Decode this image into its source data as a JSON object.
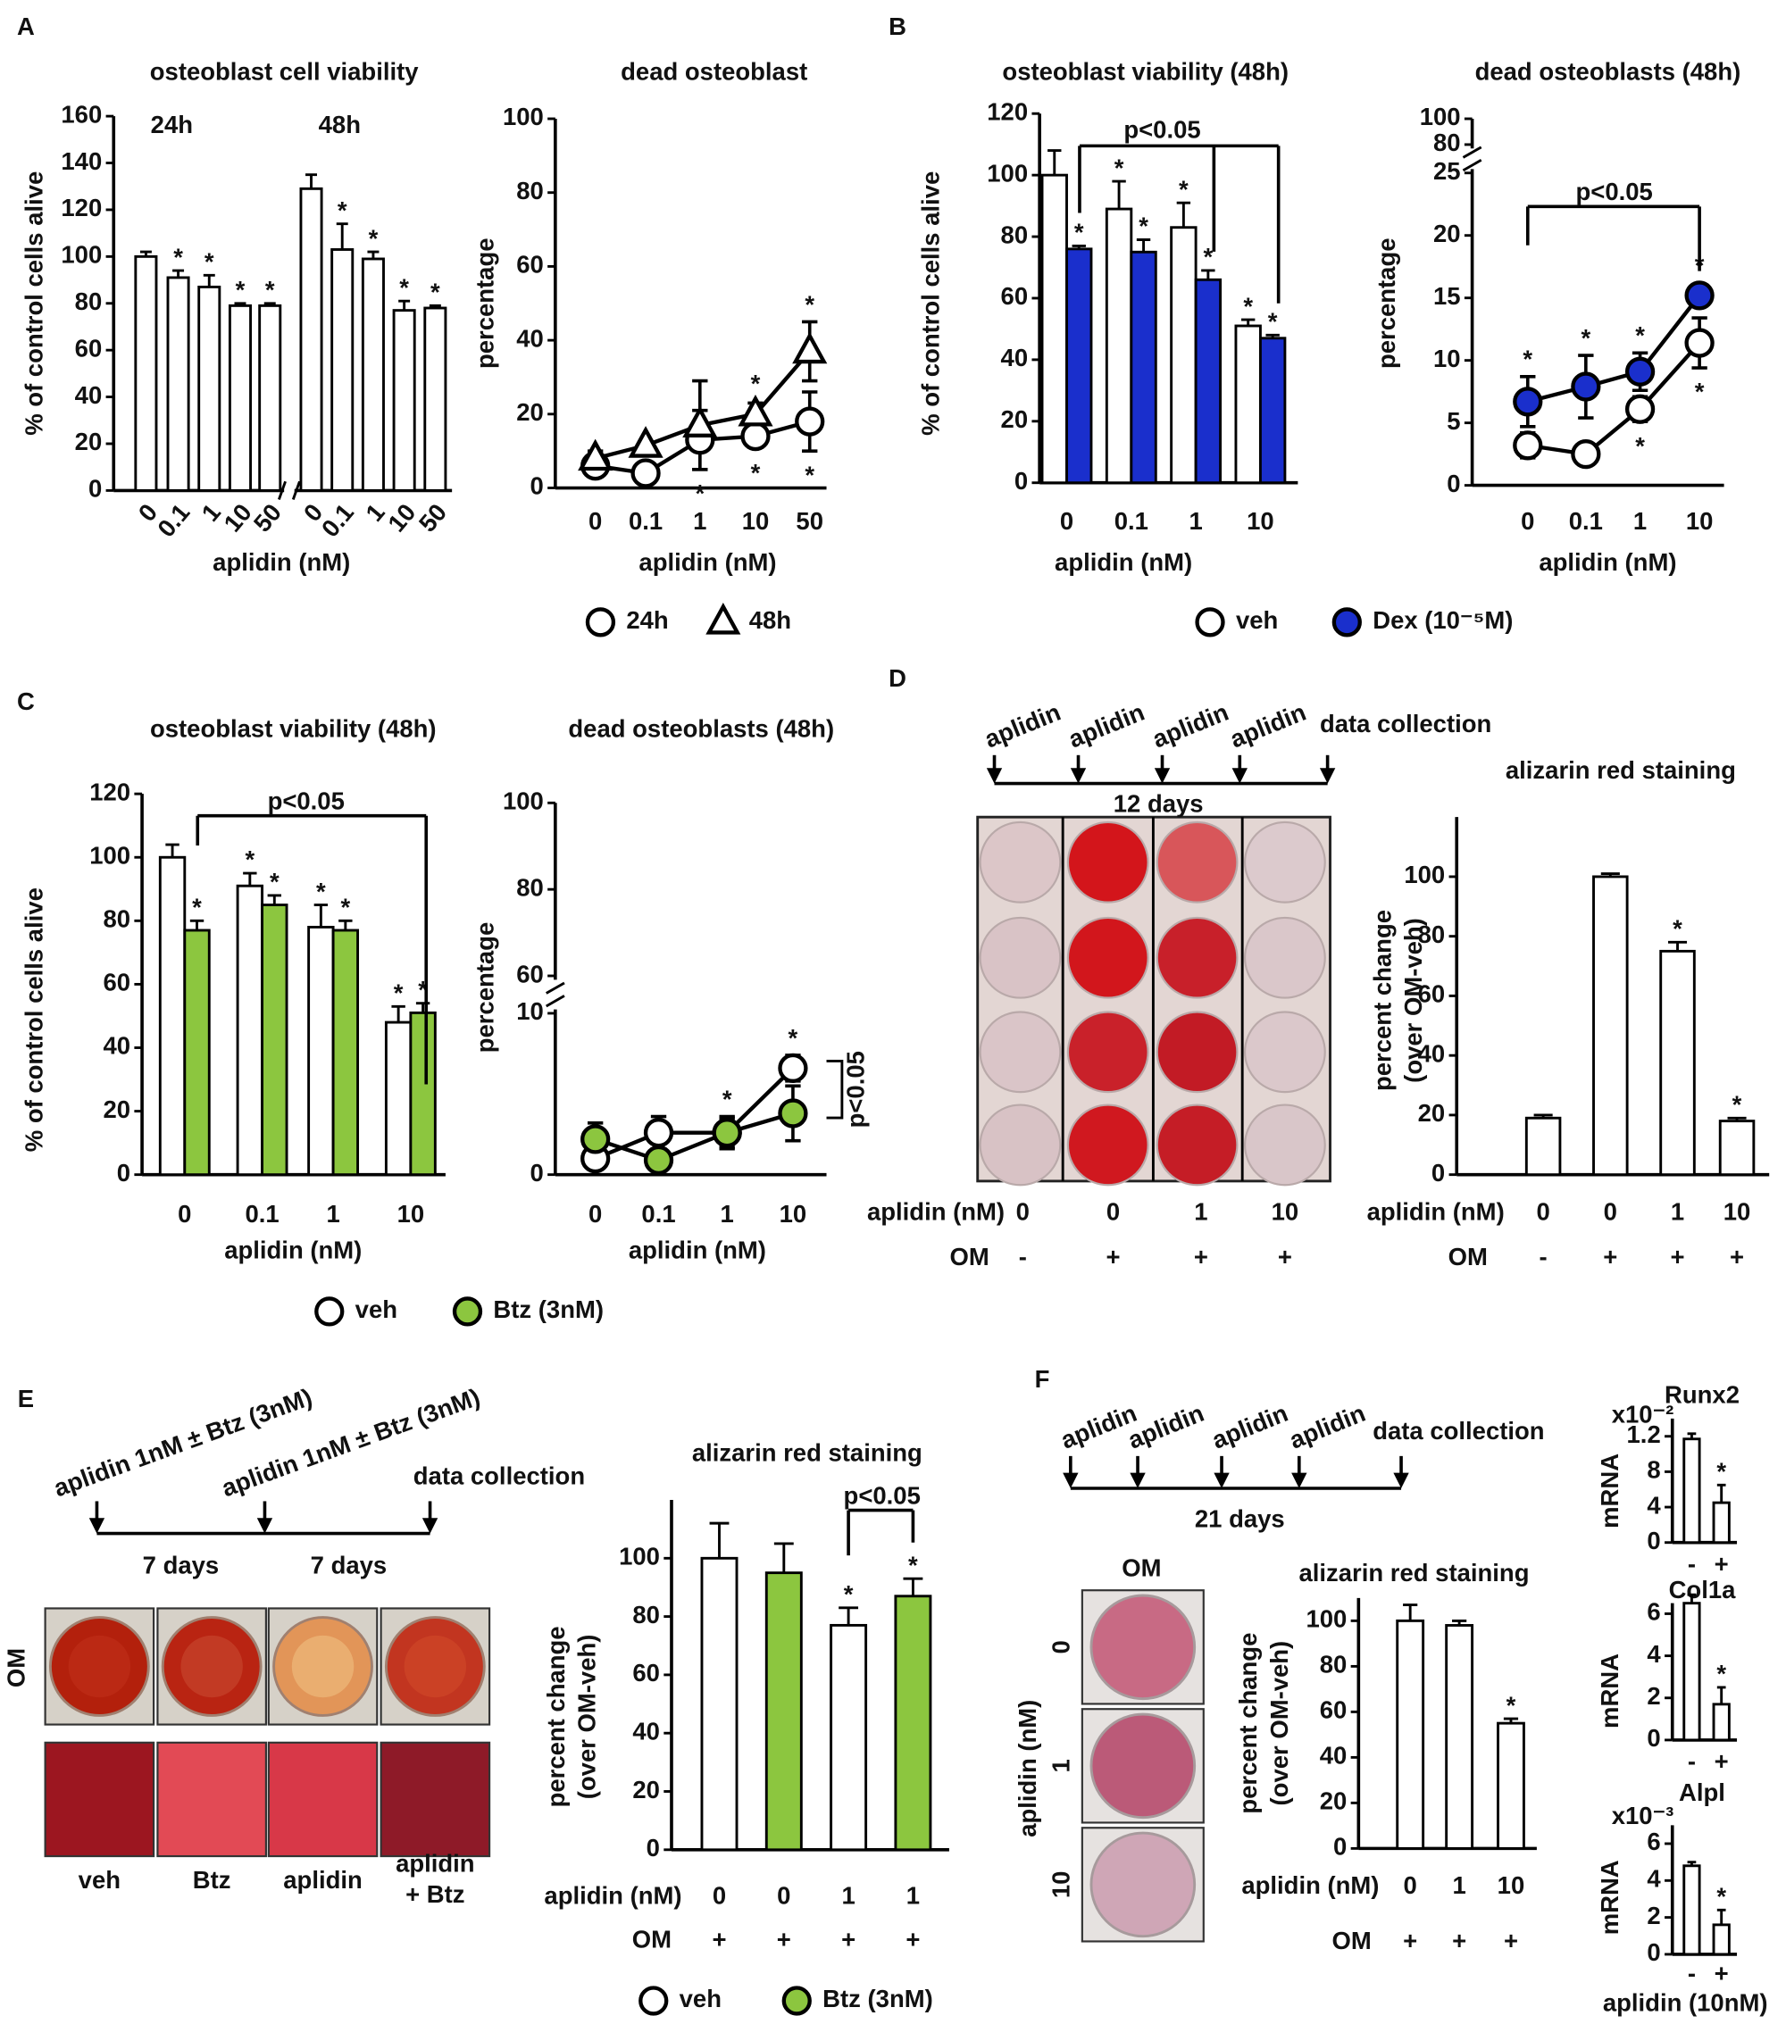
{
  "panel_labels": [
    "A",
    "B",
    "C",
    "D",
    "E",
    "F"
  ],
  "chart_data": [
    {
      "type": "bar",
      "title": "osteoblast cell viability",
      "ylabel": "% of control cells alive",
      "xlabel": "aplidin (nM)",
      "groups": [
        "24h",
        "48h"
      ],
      "categories": [
        "0",
        "0.1",
        "1",
        "10",
        "50",
        "0",
        "0.1",
        "1",
        "10",
        "50"
      ],
      "values": [
        100,
        91,
        87,
        79,
        79,
        129,
        103,
        99,
        77,
        78
      ],
      "errors": [
        2,
        3,
        5,
        1,
        1,
        6,
        11,
        3,
        4,
        1
      ],
      "stars": [
        null,
        "*",
        "*",
        "*",
        "*",
        null,
        "*",
        "*",
        "*",
        "*"
      ],
      "color": "#ffffff",
      "ylim": [
        0,
        160
      ],
      "yticks": [
        0,
        20,
        40,
        60,
        80,
        100,
        120,
        140,
        160
      ]
    },
    {
      "type": "line",
      "title": "dead osteoblast",
      "ylabel": "percentage",
      "xlabel": "aplidin (nM)",
      "categories": [
        "0",
        "0.1",
        "1",
        "10",
        "50"
      ],
      "series": [
        {
          "name": "24h",
          "marker": "circle",
          "color": "#ffffff",
          "values": [
            6,
            4,
            13,
            14,
            18
          ],
          "errors": [
            1,
            1,
            8,
            3,
            8
          ],
          "stars": [
            null,
            null,
            "*",
            "*",
            "*"
          ]
        },
        {
          "name": "48h",
          "marker": "triangle",
          "color": "#ffffff",
          "values": [
            8,
            11.5,
            17,
            20,
            37
          ],
          "errors": [
            2,
            1,
            12,
            3,
            8
          ],
          "stars": [
            null,
            null,
            null,
            "*",
            "*"
          ]
        }
      ],
      "ylim": [
        0,
        100
      ],
      "yticks": [
        0,
        20,
        40,
        60,
        80,
        100
      ],
      "legend": "bottom"
    },
    {
      "type": "bar",
      "title": "osteoblast viability (48h)",
      "ylabel": "% of control cells alive",
      "xlabel": "aplidin (nM)",
      "annotation": "p<0.05",
      "categories": [
        "0",
        "0.1",
        "1",
        "10"
      ],
      "series": [
        {
          "name": "veh",
          "marker": "circle",
          "color": "#ffffff",
          "values": [
            100,
            89,
            83,
            51
          ],
          "errors": [
            8,
            9,
            8,
            2
          ],
          "stars": [
            null,
            "*",
            "*",
            "*"
          ]
        },
        {
          "name": "Dex (10⁻⁵M)",
          "marker": "circle",
          "color": "#1a2fcc",
          "values": [
            76,
            75,
            66,
            47
          ],
          "errors": [
            1,
            4,
            3,
            1
          ],
          "stars": [
            "*",
            "*",
            "*",
            "*"
          ]
        }
      ],
      "ylim": [
        0,
        120
      ],
      "yticks": [
        0,
        20,
        40,
        60,
        80,
        100,
        120
      ],
      "legend": "bottom"
    },
    {
      "type": "line",
      "title": "dead osteoblasts (48h)",
      "ylabel": "percentage",
      "xlabel": "aplidin (nM)",
      "annotation": "p<0.05",
      "categories": [
        "0",
        "0.1",
        "1",
        "10"
      ],
      "series": [
        {
          "marker": "circle",
          "color": "#ffffff",
          "values": [
            3.2,
            2.5,
            6.1,
            11.4
          ],
          "errors": [
            1,
            0.5,
            1,
            2
          ],
          "stars": [
            null,
            null,
            "*",
            "*"
          ]
        },
        {
          "marker": "circle",
          "color": "#1a2fcc",
          "values": [
            6.7,
            7.9,
            9.1,
            15.2
          ],
          "errors": [
            2,
            2.5,
            1.5,
            0.5
          ],
          "stars": [
            "*",
            "*",
            "*",
            "*"
          ]
        }
      ],
      "ylim": [
        0,
        25
      ],
      "yticks": [
        0,
        5,
        10,
        15,
        20,
        25
      ],
      "upper_ylim": [
        80,
        100
      ],
      "upper_yticks": [
        80,
        100
      ]
    },
    {
      "type": "bar",
      "title": "osteoblast viability (48h)",
      "ylabel": "% of control cells alive",
      "xlabel": "aplidin (nM)",
      "annotation": "p<0.05",
      "categories": [
        "0",
        "0.1",
        "1",
        "10"
      ],
      "series": [
        {
          "name": "veh",
          "marker": "circle",
          "color": "#ffffff",
          "values": [
            100,
            91,
            78,
            48
          ],
          "errors": [
            4,
            4,
            7,
            5
          ],
          "stars": [
            null,
            "*",
            "*",
            "*"
          ]
        },
        {
          "name": "Btz (3nM)",
          "marker": "circle",
          "color": "#8cc63f",
          "values": [
            77,
            85,
            77,
            51
          ],
          "errors": [
            3,
            3,
            3,
            3
          ],
          "stars": [
            "*",
            "*",
            "*",
            "*"
          ]
        }
      ],
      "ylim": [
        0,
        120
      ],
      "yticks": [
        0,
        20,
        40,
        60,
        80,
        100,
        120
      ],
      "legend": "bottom"
    },
    {
      "type": "line",
      "title": "dead osteoblasts (48h)",
      "ylabel": "percentage",
      "xlabel": "aplidin (nM)",
      "annotation": "p<0.05",
      "categories": [
        "0",
        "0.1",
        "1",
        "10"
      ],
      "series": [
        {
          "marker": "circle",
          "color": "#ffffff",
          "values": [
            1.0,
            2.6,
            2.6,
            6.6
          ],
          "errors": [
            0.5,
            1,
            1,
            0.8
          ],
          "stars": [
            null,
            null,
            "*",
            "*"
          ]
        },
        {
          "marker": "circle",
          "color": "#8cc63f",
          "values": [
            2.2,
            0.9,
            2.6,
            3.8
          ],
          "errors": [
            1,
            0.3,
            0.9,
            1.7
          ]
        }
      ],
      "ylim": [
        0,
        10
      ],
      "yticks": [
        0,
        10
      ],
      "upper_ylim": [
        60,
        100
      ],
      "upper_yticks": [
        60,
        80,
        100
      ]
    },
    {
      "type": "bar",
      "title": "alizarin red staining",
      "ylabel": [
        "percent change",
        "(over OM-veh)"
      ],
      "xlabel": "aplidin (nM)",
      "categories": [
        "0",
        "0",
        "1",
        "10"
      ],
      "rows": [
        {
          "label": "OM",
          "values": [
            "-",
            "+",
            "+",
            "+"
          ]
        }
      ],
      "values": [
        19,
        100,
        75,
        18
      ],
      "errors": [
        1,
        1,
        3,
        1
      ],
      "stars": [
        null,
        null,
        "*",
        "*"
      ],
      "color": "#ffffff",
      "ylim": [
        0,
        120
      ],
      "yticks": [
        0,
        20,
        40,
        60,
        80,
        100
      ]
    },
    {
      "type": "bar",
      "title": "alizarin red staining",
      "ylabel": [
        "percent change",
        "(over OM-veh)"
      ],
      "xlabel": "aplidin (nM)",
      "annotation": "p<0.05",
      "categories": [
        "0",
        "0",
        "1",
        "1"
      ],
      "rows": [
        {
          "label": "OM",
          "values": [
            "+",
            "+",
            "+",
            "+"
          ]
        }
      ],
      "series": [
        {
          "name": "veh",
          "marker": "circle",
          "color": "#ffffff",
          "values": [
            100,
            null,
            77,
            null
          ],
          "errors": [
            12,
            null,
            6,
            null
          ],
          "stars": [
            null,
            null,
            "*",
            null
          ]
        },
        {
          "name": "Btz (3nM)",
          "marker": "circle",
          "color": "#8cc63f",
          "values": [
            null,
            95,
            null,
            87
          ],
          "errors": [
            null,
            10,
            null,
            6
          ],
          "stars": [
            null,
            null,
            null,
            "*"
          ]
        }
      ],
      "ylim": [
        0,
        120
      ],
      "yticks": [
        0,
        20,
        40,
        60,
        80,
        100
      ],
      "legend": "bottom"
    },
    {
      "type": "bar",
      "title": "alizarin red staining",
      "ylabel": [
        "percent change",
        "(over OM-veh)"
      ],
      "xlabel": "aplidin (nM)",
      "categories": [
        "0",
        "1",
        "10"
      ],
      "rows": [
        {
          "label": "OM",
          "values": [
            "+",
            "+",
            "+"
          ]
        }
      ],
      "values": [
        100,
        98,
        55
      ],
      "errors": [
        7,
        2,
        2
      ],
      "stars": [
        null,
        null,
        "*"
      ],
      "color": "#ffffff",
      "ylim": [
        0,
        110
      ],
      "yticks": [
        0,
        20,
        40,
        60,
        80,
        100
      ]
    },
    {
      "type": "bar",
      "title": "Runx2",
      "multiplier": "x10⁻²",
      "ylabel": "mRNA",
      "categories": [
        "-",
        "+"
      ],
      "values": [
        1.17,
        0.45
      ],
      "errors": [
        0.06,
        0.2
      ],
      "stars": [
        null,
        "*"
      ],
      "color": "#ffffff",
      "ylim": [
        0,
        1.4
      ],
      "yticks": [
        0,
        {
          "value": 0.4,
          "label": "4"
        },
        {
          "value": 0.8,
          "label": "8"
        },
        1.2
      ]
    },
    {
      "type": "bar",
      "title": "Col1a",
      "ylabel": "mRNA",
      "categories": [
        "-",
        "+"
      ],
      "values": [
        6.5,
        1.7
      ],
      "errors": [
        0.4,
        0.8
      ],
      "stars": [
        null,
        "*"
      ],
      "color": "#ffffff",
      "ylim": [
        0,
        6.5
      ],
      "yticks": [
        0,
        2,
        4,
        6
      ]
    },
    {
      "type": "bar",
      "title": "Alpl",
      "multiplier": "x10⁻³",
      "ylabel": "mRNA",
      "xlabel": "aplidin (10nM)",
      "categories": [
        "-",
        "+"
      ],
      "values": [
        4.8,
        1.6
      ],
      "errors": [
        0.2,
        0.8
      ],
      "stars": [
        null,
        "*"
      ],
      "color": "#ffffff",
      "ylim": [
        0,
        7
      ],
      "yticks": [
        0,
        2,
        4,
        6
      ]
    }
  ],
  "schematics": [
    {
      "events": [
        "aplidin",
        "aplidin",
        "aplidin",
        "aplidin"
      ],
      "end": "data collection",
      "durations": [
        "12 days"
      ]
    },
    {
      "events": [
        "aplidin 1nM ± Btz (3nM)",
        "aplidin 1nM ± Btz (3nM)"
      ],
      "end": "data collection",
      "durations": [
        "7 days",
        "7 days"
      ]
    },
    {
      "events": [
        "aplidin",
        "aplidin",
        "aplidin",
        "aplidin"
      ],
      "end": "data collection",
      "durations": [
        "21 days"
      ]
    }
  ],
  "photos": {
    "D": {
      "rows": [
        {
          "label": "aplidin (nM)",
          "values": [
            "0",
            "0",
            "1",
            "10"
          ]
        },
        {
          "label": "OM",
          "values": [
            "-",
            "+",
            "+",
            "+"
          ]
        }
      ]
    },
    "E": {
      "row_label": "OM",
      "captions": [
        "veh",
        "Btz",
        "aplidin",
        [
          "aplidin",
          "+ Btz"
        ]
      ]
    },
    "F": {
      "title": "OM",
      "axis_label": "aplidin (nM)",
      "labels": [
        "0",
        "1",
        "10"
      ]
    }
  }
}
